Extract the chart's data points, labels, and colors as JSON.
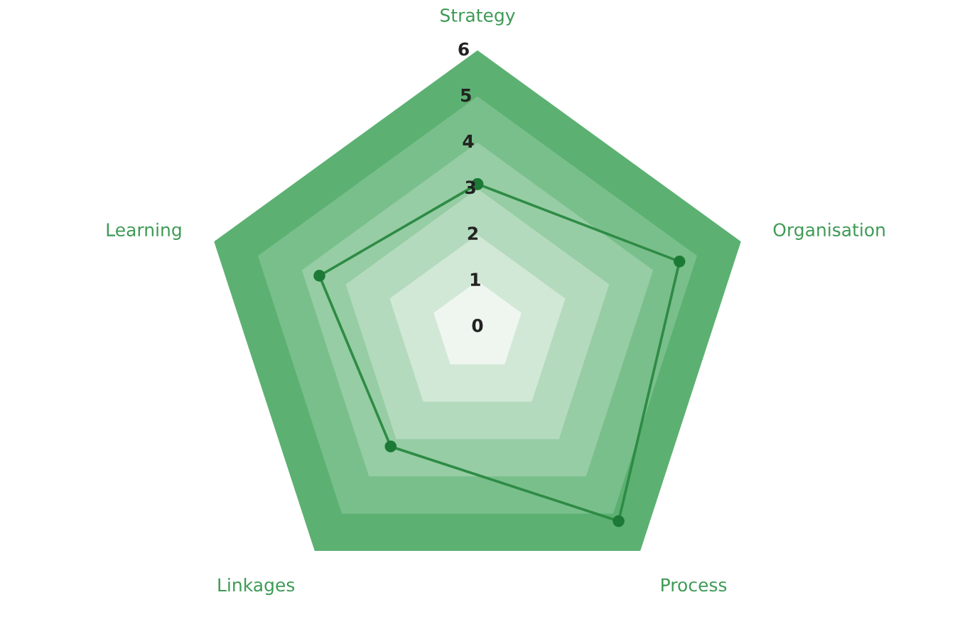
{
  "chart_data": {
    "type": "radar",
    "categories": [
      "Strategy",
      "Organisation",
      "Process",
      "Linkages",
      "Learning"
    ],
    "series": [
      {
        "color": "#2e8b45",
        "values": [
          3.1,
          4.6,
          5.2,
          3.2,
          3.6
        ]
      }
    ],
    "ylim": [
      0,
      6
    ],
    "yticks": [
      0,
      1,
      2,
      3,
      4,
      5,
      6
    ],
    "marker": "circle",
    "line_style": "solid"
  }
}
